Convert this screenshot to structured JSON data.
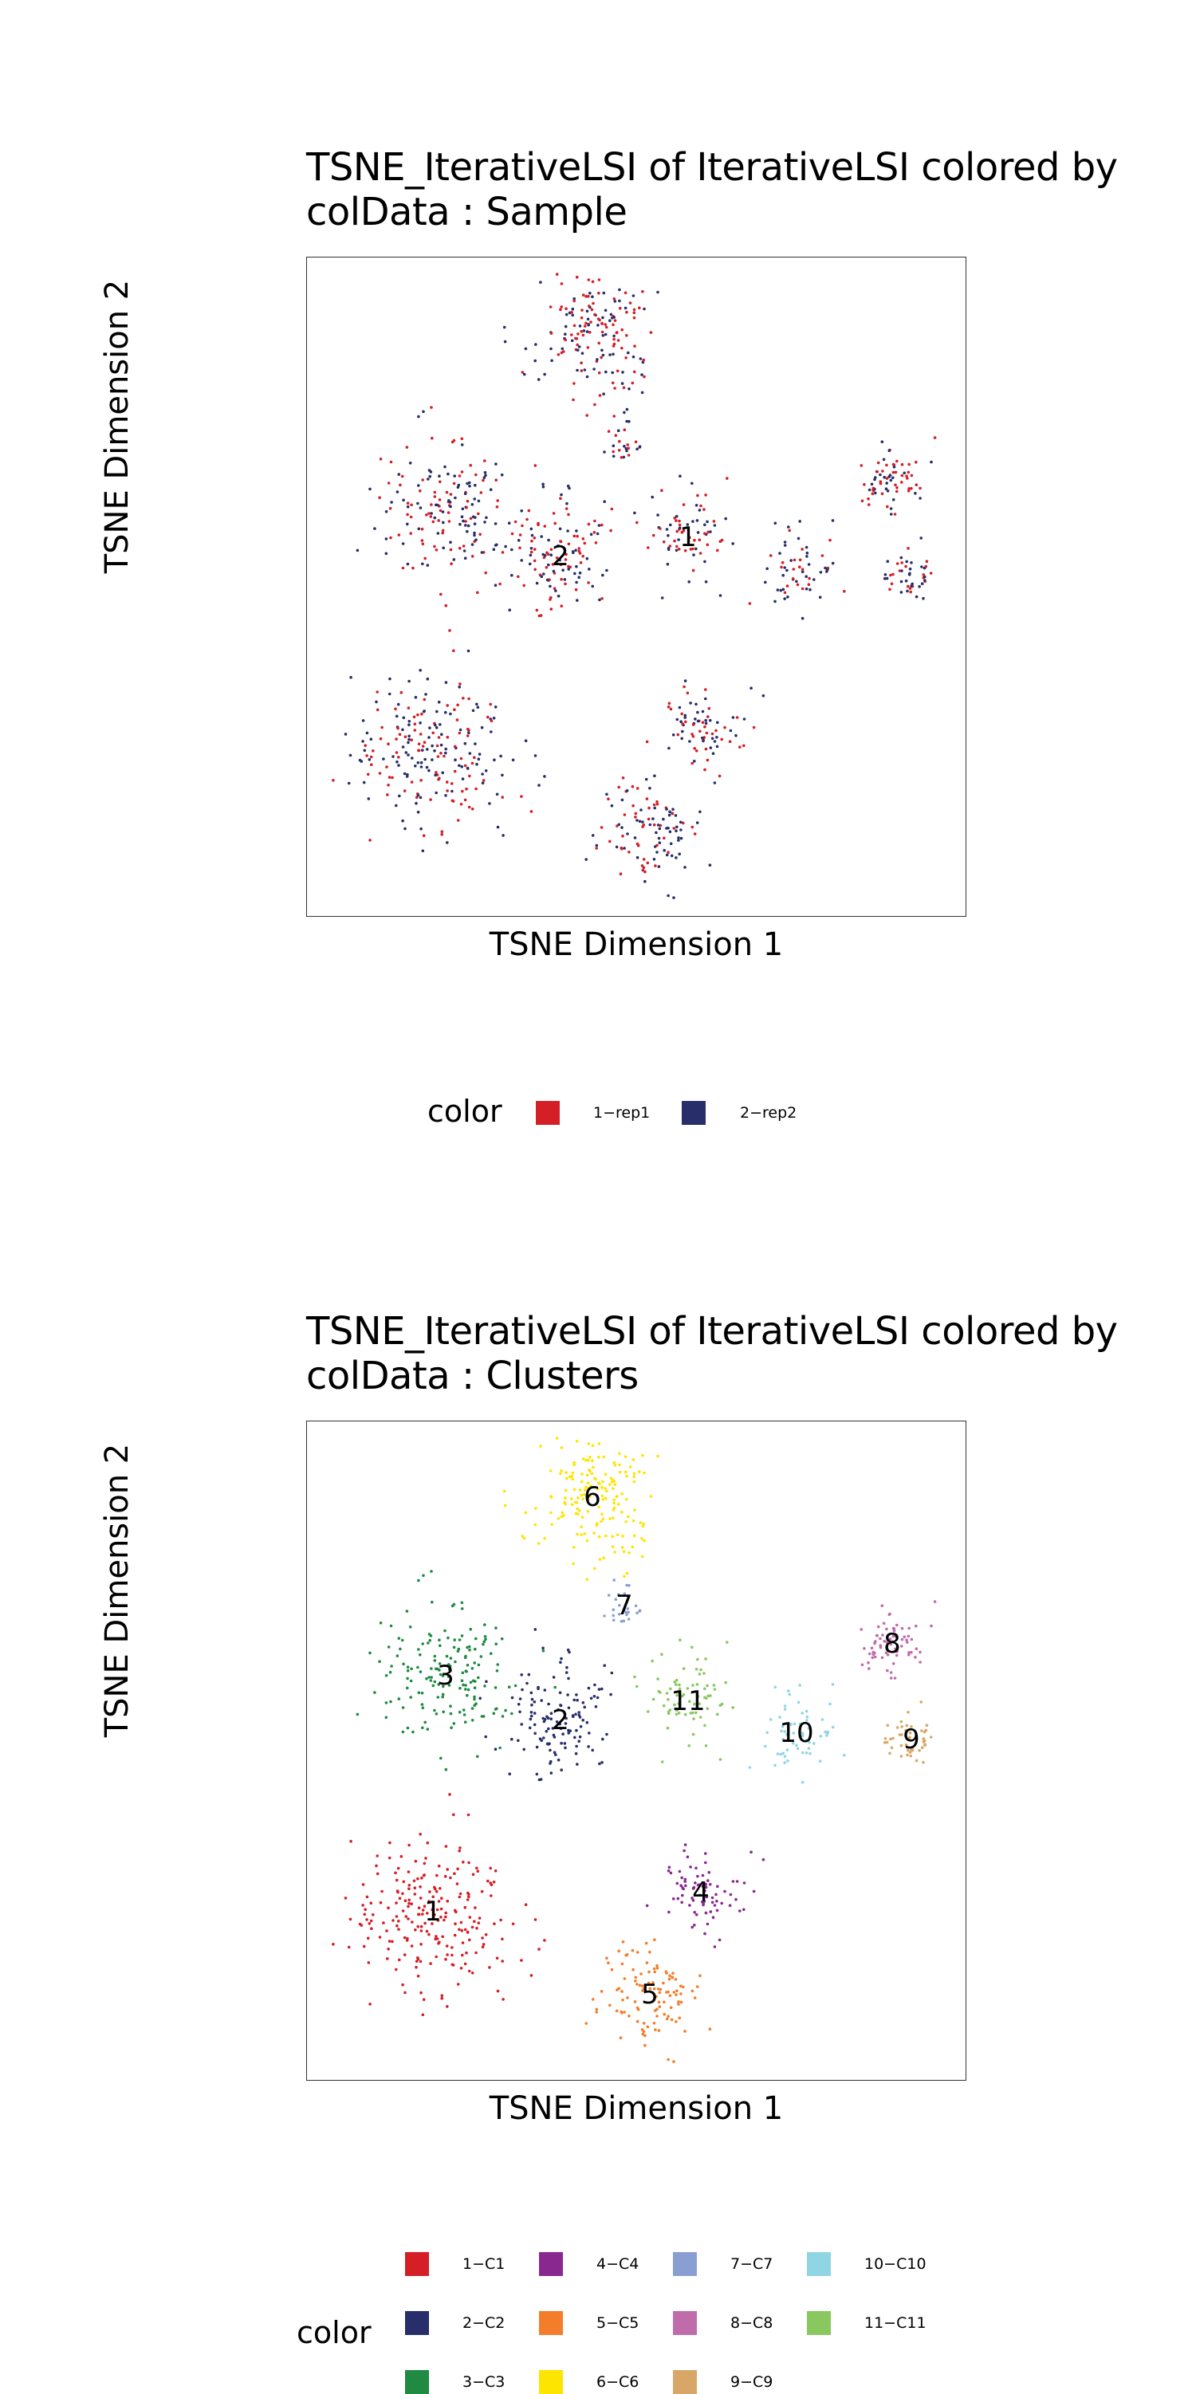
{
  "charts": [
    {
      "id": "sample",
      "title": "TSNE_IterativeLSI of IterativeLSI  colored by\ncolData :  Sample",
      "xlabel": "TSNE Dimension 1",
      "ylabel": "TSNE Dimension 2",
      "legend_title": "color",
      "legend": [
        {
          "label": "1−rep1",
          "color": "#D51F26"
        },
        {
          "label": "2−rep2",
          "color": "#272E6A"
        }
      ],
      "cluster_labels": [
        "1",
        "2"
      ]
    },
    {
      "id": "clusters",
      "title": "TSNE_IterativeLSI of IterativeLSI  colored by\ncolData :  Clusters",
      "xlabel": "TSNE Dimension 1",
      "ylabel": "TSNE Dimension 2",
      "legend_title": "color",
      "legend": [
        {
          "label": "1−C1",
          "color": "#D51F26"
        },
        {
          "label": "2−C2",
          "color": "#272E6A"
        },
        {
          "label": "3−C3",
          "color": "#208A42"
        },
        {
          "label": "4−C4",
          "color": "#89288F"
        },
        {
          "label": "5−C5",
          "color": "#F47D2B"
        },
        {
          "label": "6−C6",
          "color": "#FEE500"
        },
        {
          "label": "7−C7",
          "color": "#8A9FD1"
        },
        {
          "label": "8−C8",
          "color": "#C06CAB"
        },
        {
          "label": "9−C9",
          "color": "#D8A767"
        },
        {
          "label": "10−C10",
          "color": "#90D5E4"
        },
        {
          "label": "11−C11",
          "color": "#89C75F"
        }
      ],
      "cluster_labels": [
        "1",
        "2",
        "3",
        "4",
        "5",
        "6",
        "7",
        "8",
        "9",
        "10",
        "11"
      ]
    }
  ],
  "chart_data": [
    {
      "type": "scatter",
      "title": "TSNE_IterativeLSI of IterativeLSI  colored by colData :  Sample",
      "xlabel": "TSNE Dimension 1",
      "ylabel": "TSNE Dimension 2",
      "xlim": [
        -50,
        50
      ],
      "ylim": [
        -50,
        50
      ],
      "grid": false,
      "legend_position": "bottom",
      "series": [
        {
          "name": "1−rep1",
          "color": "#D51F26"
        },
        {
          "name": "2−rep2",
          "color": "#272E6A"
        }
      ],
      "groups": [
        {
          "label": "C1",
          "cx": -32,
          "cy": -25,
          "r": 14,
          "n": 230,
          "label_shown": false
        },
        {
          "label": "2",
          "cx": -12,
          "cy": 5,
          "r": 9,
          "n": 130,
          "label_shown": true
        },
        {
          "label": "C3",
          "cx": -30,
          "cy": 12,
          "r": 12,
          "n": 170,
          "label_shown": false
        },
        {
          "label": "C4",
          "cx": 10,
          "cy": -22,
          "r": 7,
          "n": 80,
          "label_shown": false
        },
        {
          "label": "C5",
          "cx": 2,
          "cy": -38,
          "r": 9,
          "n": 110,
          "label_shown": false
        },
        {
          "label": "C6",
          "cx": -7,
          "cy": 40,
          "r": 11,
          "n": 170,
          "label_shown": false
        },
        {
          "label": "C7",
          "cx": -2,
          "cy": 23,
          "r": 4,
          "n": 25,
          "label_shown": false
        },
        {
          "label": "C8",
          "cx": 40,
          "cy": 17,
          "r": 6,
          "n": 70,
          "label_shown": false
        },
        {
          "label": "C9",
          "cx": 43,
          "cy": 2,
          "r": 4,
          "n": 45,
          "label_shown": false
        },
        {
          "label": "C10",
          "cx": 25,
          "cy": 3,
          "r": 7,
          "n": 60,
          "label_shown": false
        },
        {
          "label": "1",
          "cx": 8,
          "cy": 8,
          "r": 8,
          "n": 75,
          "label_shown": true
        }
      ]
    },
    {
      "type": "scatter",
      "title": "TSNE_IterativeLSI of IterativeLSI  colored by colData :  Clusters",
      "xlabel": "TSNE Dimension 1",
      "ylabel": "TSNE Dimension 2",
      "xlim": [
        -50,
        50
      ],
      "ylim": [
        -50,
        50
      ],
      "grid": false,
      "legend_position": "bottom",
      "series": [
        {
          "name": "1−C1",
          "color": "#D51F26",
          "cx": -32,
          "cy": -25,
          "r": 14,
          "n": 230
        },
        {
          "name": "2−C2",
          "color": "#272E6A",
          "cx": -12,
          "cy": 5,
          "r": 9,
          "n": 130
        },
        {
          "name": "3−C3",
          "color": "#208A42",
          "cx": -30,
          "cy": 12,
          "r": 12,
          "n": 170
        },
        {
          "name": "4−C4",
          "color": "#89288F",
          "cx": 10,
          "cy": -22,
          "r": 7,
          "n": 80
        },
        {
          "name": "5−C5",
          "color": "#F47D2B",
          "cx": 2,
          "cy": -38,
          "r": 9,
          "n": 110
        },
        {
          "name": "6−C6",
          "color": "#FEE500",
          "cx": -7,
          "cy": 40,
          "r": 11,
          "n": 170
        },
        {
          "name": "7−C7",
          "color": "#8A9FD1",
          "cx": -2,
          "cy": 23,
          "r": 4,
          "n": 25
        },
        {
          "name": "8−C8",
          "color": "#C06CAB",
          "cx": 40,
          "cy": 17,
          "r": 6,
          "n": 70
        },
        {
          "name": "9−C9",
          "color": "#D8A767",
          "cx": 43,
          "cy": 2,
          "r": 4,
          "n": 45
        },
        {
          "name": "10−C10",
          "color": "#90D5E4",
          "cx": 25,
          "cy": 3,
          "r": 7,
          "n": 60
        },
        {
          "name": "11−C11",
          "color": "#89C75F",
          "cx": 8,
          "cy": 8,
          "r": 8,
          "n": 75
        }
      ]
    }
  ]
}
